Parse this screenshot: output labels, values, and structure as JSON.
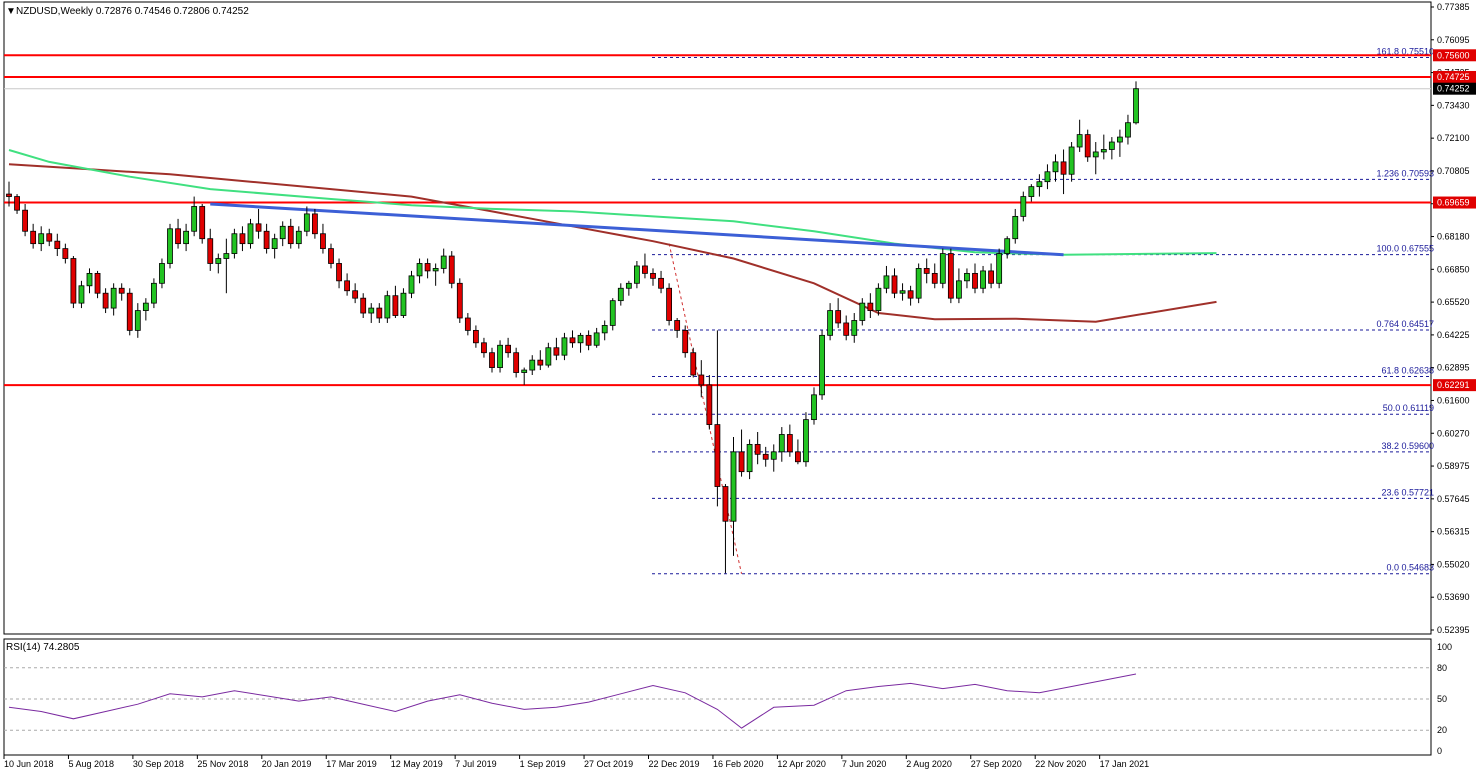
{
  "window": {
    "symbol_info": "NZDUSD,Weekly  0.72876 0.74546 0.72806 0.74252"
  },
  "colors": {
    "bull": "#22c322",
    "bear": "#e00000",
    "sma_fast": "#40e080",
    "sma_slow": "#a0302a",
    "trendline": "#3c5fd6",
    "resistance": "#ff0000",
    "fib": "#1a1a9a",
    "rsi": "#7a2aa0",
    "current_tag": "#000000",
    "level_tag": "#e00000"
  },
  "chart_data": [
    {
      "type": "candlestick",
      "title": "NZDUSD,Weekly",
      "ohlc_readout": [
        "0.72876",
        "0.74546",
        "0.72806",
        "0.74252"
      ],
      "price_axis_labels": [
        "0.77385",
        "0.76095",
        "0.74725",
        "0.73430",
        "0.72100",
        "0.70805",
        "0.69659",
        "0.68180",
        "0.66850",
        "0.65520",
        "0.64225",
        "0.62895",
        "0.61600",
        "0.60270",
        "0.58975",
        "0.57645",
        "0.56315",
        "0.55020",
        "0.53690",
        "0.52395"
      ],
      "time_axis_labels": [
        "10 Jun 2018",
        "5 Aug 2018",
        "30 Sep 2018",
        "25 Nov 2018",
        "20 Jan 2019",
        "17 Mar 2019",
        "12 May 2019",
        "7 Jul 2019",
        "1 Sep 2019",
        "27 Oct 2019",
        "22 Dec 2019",
        "16 Feb 2020",
        "12 Apr 2020",
        "7 Jun 2020",
        "2 Aug 2020",
        "27 Sep 2020",
        "22 Nov 2020",
        "17 Jan 2021"
      ],
      "ylim": [
        0.5225,
        0.7775
      ],
      "current_price": 0.74252,
      "current_price_label": "0.74252",
      "horizontal_levels": [
        {
          "price": 0.756,
          "label": "0.75600"
        },
        {
          "price": 0.74725,
          "label": "0.74725"
        },
        {
          "price": 0.69659,
          "label": "0.69659"
        },
        {
          "price": 0.62291,
          "label": "0.62291"
        }
      ],
      "fibonacci": [
        {
          "text": "161.8  0.75510",
          "price": 0.7551
        },
        {
          "text": "1.236  0.70593",
          "price": 0.70593
        },
        {
          "text": "100.0  0.67555",
          "price": 0.67555
        },
        {
          "text": "0.764  0.64517",
          "price": 0.64517
        },
        {
          "text": "61.8  0.62638",
          "price": 0.62638
        },
        {
          "text": "50.0  0.61119",
          "price": 0.61119
        },
        {
          "text": "38.2  0.59600",
          "price": 0.596
        },
        {
          "text": "23.6  0.57721",
          "price": 0.57721
        },
        {
          "text": "0.0  0.54683",
          "price": 0.54683
        }
      ],
      "fib_swing": {
        "from_week": 82,
        "from_price": 0.68,
        "to_week": 91,
        "to_price": 0.5468
      },
      "trendline": {
        "from_week": 25,
        "from_price": 0.696,
        "to_week": 131,
        "to_price": 0.6755
      },
      "sma_fast_points": [
        [
          0,
          0.7178
        ],
        [
          5,
          0.713
        ],
        [
          15,
          0.707
        ],
        [
          25,
          0.702
        ],
        [
          40,
          0.698
        ],
        [
          50,
          0.6955
        ],
        [
          60,
          0.694
        ],
        [
          70,
          0.693
        ],
        [
          80,
          0.691
        ],
        [
          90,
          0.689
        ],
        [
          100,
          0.685
        ],
        [
          110,
          0.68
        ],
        [
          120,
          0.6765
        ],
        [
          131,
          0.6755
        ],
        [
          150,
          0.6762
        ]
      ],
      "sma_slow_points": [
        [
          0,
          0.712
        ],
        [
          10,
          0.71
        ],
        [
          20,
          0.708
        ],
        [
          30,
          0.705
        ],
        [
          40,
          0.702
        ],
        [
          50,
          0.699
        ],
        [
          60,
          0.693
        ],
        [
          70,
          0.687
        ],
        [
          80,
          0.681
        ],
        [
          90,
          0.674
        ],
        [
          100,
          0.664
        ],
        [
          108,
          0.652
        ],
        [
          115,
          0.6495
        ],
        [
          125,
          0.6497
        ],
        [
          135,
          0.6485
        ],
        [
          150,
          0.6565
        ]
      ],
      "rsi": {
        "label": "RSI(14) 74.2805",
        "value": 74.2805,
        "ylim": [
          0,
          100
        ],
        "levels": [
          80,
          50,
          20
        ],
        "axis_labels": [
          "100",
          "80",
          "50",
          "20",
          "0"
        ],
        "points": [
          [
            0,
            42
          ],
          [
            4,
            38
          ],
          [
            8,
            31
          ],
          [
            12,
            38
          ],
          [
            16,
            45
          ],
          [
            20,
            55
          ],
          [
            24,
            52
          ],
          [
            28,
            58
          ],
          [
            32,
            53
          ],
          [
            36,
            48
          ],
          [
            40,
            52
          ],
          [
            44,
            45
          ],
          [
            48,
            38
          ],
          [
            52,
            48
          ],
          [
            56,
            54
          ],
          [
            60,
            46
          ],
          [
            64,
            40
          ],
          [
            68,
            42
          ],
          [
            72,
            47
          ],
          [
            76,
            55
          ],
          [
            80,
            63
          ],
          [
            84,
            56
          ],
          [
            88,
            40
          ],
          [
            91,
            22
          ],
          [
            95,
            42
          ],
          [
            100,
            44
          ],
          [
            104,
            58
          ],
          [
            108,
            62
          ],
          [
            112,
            65
          ],
          [
            116,
            60
          ],
          [
            120,
            64
          ],
          [
            124,
            58
          ],
          [
            128,
            56
          ],
          [
            132,
            62
          ],
          [
            136,
            68
          ],
          [
            140,
            74
          ]
        ]
      },
      "candles": [
        [
          0.7,
          0.705,
          0.695,
          0.699
        ],
        [
          0.699,
          0.7,
          0.692,
          0.6935
        ],
        [
          0.6935,
          0.696,
          0.683,
          0.685
        ],
        [
          0.685,
          0.688,
          0.678,
          0.68
        ],
        [
          0.68,
          0.687,
          0.677,
          0.684
        ],
        [
          0.684,
          0.686,
          0.679,
          0.681
        ],
        [
          0.681,
          0.684,
          0.675,
          0.678
        ],
        [
          0.678,
          0.68,
          0.672,
          0.674
        ],
        [
          0.674,
          0.675,
          0.654,
          0.656
        ],
        [
          0.656,
          0.665,
          0.654,
          0.663
        ],
        [
          0.663,
          0.67,
          0.66,
          0.668
        ],
        [
          0.668,
          0.669,
          0.658,
          0.66
        ],
        [
          0.66,
          0.662,
          0.652,
          0.654
        ],
        [
          0.654,
          0.664,
          0.651,
          0.662
        ],
        [
          0.662,
          0.664,
          0.657,
          0.66
        ],
        [
          0.66,
          0.662,
          0.643,
          0.645
        ],
        [
          0.645,
          0.656,
          0.642,
          0.653
        ],
        [
          0.653,
          0.658,
          0.649,
          0.656
        ],
        [
          0.656,
          0.666,
          0.654,
          0.664
        ],
        [
          0.664,
          0.674,
          0.662,
          0.672
        ],
        [
          0.672,
          0.688,
          0.67,
          0.686
        ],
        [
          0.686,
          0.69,
          0.678,
          0.68
        ],
        [
          0.68,
          0.688,
          0.677,
          0.685
        ],
        [
          0.685,
          0.699,
          0.683,
          0.695
        ],
        [
          0.695,
          0.696,
          0.68,
          0.682
        ],
        [
          0.682,
          0.686,
          0.669,
          0.672
        ],
        [
          0.672,
          0.676,
          0.668,
          0.674
        ],
        [
          0.674,
          0.682,
          0.66,
          0.676
        ],
        [
          0.676,
          0.686,
          0.674,
          0.684
        ],
        [
          0.684,
          0.687,
          0.677,
          0.68
        ],
        [
          0.68,
          0.69,
          0.678,
          0.688
        ],
        [
          0.688,
          0.694,
          0.682,
          0.685
        ],
        [
          0.685,
          0.688,
          0.676,
          0.678
        ],
        [
          0.678,
          0.684,
          0.674,
          0.682
        ],
        [
          0.682,
          0.689,
          0.679,
          0.687
        ],
        [
          0.687,
          0.69,
          0.678,
          0.68
        ],
        [
          0.68,
          0.687,
          0.678,
          0.685
        ],
        [
          0.685,
          0.695,
          0.683,
          0.692
        ],
        [
          0.692,
          0.694,
          0.682,
          0.684
        ],
        [
          0.684,
          0.688,
          0.676,
          0.678
        ],
        [
          0.678,
          0.68,
          0.67,
          0.672
        ],
        [
          0.672,
          0.674,
          0.662,
          0.665
        ],
        [
          0.665,
          0.668,
          0.659,
          0.661
        ],
        [
          0.661,
          0.664,
          0.656,
          0.658
        ],
        [
          0.658,
          0.66,
          0.65,
          0.652
        ],
        [
          0.652,
          0.656,
          0.648,
          0.654
        ],
        [
          0.654,
          0.656,
          0.648,
          0.65
        ],
        [
          0.65,
          0.661,
          0.648,
          0.659
        ],
        [
          0.659,
          0.663,
          0.65,
          0.651
        ],
        [
          0.651,
          0.662,
          0.65,
          0.66
        ],
        [
          0.66,
          0.669,
          0.658,
          0.667
        ],
        [
          0.667,
          0.674,
          0.664,
          0.672
        ],
        [
          0.672,
          0.674,
          0.666,
          0.669
        ],
        [
          0.669,
          0.672,
          0.663,
          0.67
        ],
        [
          0.67,
          0.678,
          0.668,
          0.675
        ],
        [
          0.675,
          0.677,
          0.662,
          0.664
        ],
        [
          0.664,
          0.666,
          0.648,
          0.65
        ],
        [
          0.65,
          0.652,
          0.643,
          0.645
        ],
        [
          0.645,
          0.647,
          0.638,
          0.64
        ],
        [
          0.64,
          0.642,
          0.634,
          0.636
        ],
        [
          0.636,
          0.638,
          0.628,
          0.63
        ],
        [
          0.63,
          0.641,
          0.628,
          0.639
        ],
        [
          0.639,
          0.642,
          0.634,
          0.636
        ],
        [
          0.636,
          0.638,
          0.626,
          0.628
        ],
        [
          0.628,
          0.63,
          0.623,
          0.629
        ],
        [
          0.629,
          0.635,
          0.627,
          0.633
        ],
        [
          0.633,
          0.637,
          0.629,
          0.631
        ],
        [
          0.631,
          0.64,
          0.63,
          0.638
        ],
        [
          0.638,
          0.642,
          0.633,
          0.635
        ],
        [
          0.635,
          0.644,
          0.633,
          0.642
        ],
        [
          0.642,
          0.645,
          0.638,
          0.64
        ],
        [
          0.64,
          0.644,
          0.636,
          0.643
        ],
        [
          0.643,
          0.645,
          0.637,
          0.639
        ],
        [
          0.639,
          0.646,
          0.638,
          0.644
        ],
        [
          0.644,
          0.649,
          0.641,
          0.647
        ],
        [
          0.647,
          0.658,
          0.645,
          0.657
        ],
        [
          0.657,
          0.664,
          0.655,
          0.662
        ],
        [
          0.662,
          0.665,
          0.659,
          0.664
        ],
        [
          0.664,
          0.673,
          0.662,
          0.671
        ],
        [
          0.671,
          0.676,
          0.666,
          0.668
        ],
        [
          0.668,
          0.67,
          0.663,
          0.666
        ],
        [
          0.666,
          0.669,
          0.66,
          0.662
        ],
        [
          0.662,
          0.664,
          0.647,
          0.649
        ],
        [
          0.649,
          0.65,
          0.642,
          0.645
        ],
        [
          0.645,
          0.647,
          0.634,
          0.636
        ],
        [
          0.636,
          0.638,
          0.626,
          0.627
        ],
        [
          0.627,
          0.633,
          0.618,
          0.623
        ],
        [
          0.623,
          0.627,
          0.605,
          0.607
        ],
        [
          0.607,
          0.645,
          0.574,
          0.582
        ],
        [
          0.582,
          0.583,
          0.547,
          0.568
        ],
        [
          0.568,
          0.602,
          0.554,
          0.596
        ],
        [
          0.596,
          0.605,
          0.586,
          0.588
        ],
        [
          0.588,
          0.601,
          0.585,
          0.599
        ],
        [
          0.599,
          0.604,
          0.591,
          0.595
        ],
        [
          0.595,
          0.598,
          0.59,
          0.593
        ],
        [
          0.593,
          0.599,
          0.588,
          0.596
        ],
        [
          0.596,
          0.606,
          0.592,
          0.603
        ],
        [
          0.603,
          0.607,
          0.594,
          0.596
        ],
        [
          0.596,
          0.601,
          0.591,
          0.592
        ],
        [
          0.592,
          0.612,
          0.59,
          0.609
        ],
        [
          0.609,
          0.622,
          0.607,
          0.619
        ],
        [
          0.619,
          0.645,
          0.617,
          0.643
        ],
        [
          0.643,
          0.656,
          0.641,
          0.653
        ],
        [
          0.653,
          0.658,
          0.646,
          0.648
        ],
        [
          0.648,
          0.651,
          0.641,
          0.643
        ],
        [
          0.643,
          0.652,
          0.64,
          0.649
        ],
        [
          0.649,
          0.658,
          0.647,
          0.656
        ],
        [
          0.656,
          0.66,
          0.65,
          0.653
        ],
        [
          0.653,
          0.664,
          0.651,
          0.662
        ],
        [
          0.662,
          0.671,
          0.66,
          0.667
        ],
        [
          0.667,
          0.67,
          0.658,
          0.66
        ],
        [
          0.66,
          0.664,
          0.657,
          0.661
        ],
        [
          0.661,
          0.663,
          0.655,
          0.658
        ],
        [
          0.658,
          0.672,
          0.656,
          0.67
        ],
        [
          0.67,
          0.674,
          0.664,
          0.668
        ],
        [
          0.668,
          0.672,
          0.662,
          0.664
        ],
        [
          0.664,
          0.678,
          0.662,
          0.676
        ],
        [
          0.676,
          0.678,
          0.656,
          0.658
        ],
        [
          0.658,
          0.67,
          0.656,
          0.665
        ],
        [
          0.665,
          0.67,
          0.662,
          0.668
        ],
        [
          0.668,
          0.672,
          0.66,
          0.662
        ],
        [
          0.662,
          0.671,
          0.66,
          0.669
        ],
        [
          0.669,
          0.672,
          0.662,
          0.664
        ],
        [
          0.664,
          0.678,
          0.662,
          0.676
        ],
        [
          0.676,
          0.683,
          0.674,
          0.682
        ],
        [
          0.682,
          0.694,
          0.68,
          0.691
        ],
        [
          0.691,
          0.701,
          0.689,
          0.699
        ],
        [
          0.699,
          0.704,
          0.697,
          0.703
        ],
        [
          0.703,
          0.708,
          0.699,
          0.705
        ],
        [
          0.705,
          0.712,
          0.702,
          0.709
        ],
        [
          0.709,
          0.716,
          0.705,
          0.713
        ],
        [
          0.713,
          0.718,
          0.7,
          0.708
        ],
        [
          0.708,
          0.721,
          0.705,
          0.719
        ],
        [
          0.719,
          0.73,
          0.717,
          0.724
        ],
        [
          0.724,
          0.726,
          0.713,
          0.715
        ],
        [
          0.715,
          0.721,
          0.708,
          0.717
        ],
        [
          0.717,
          0.724,
          0.714,
          0.718
        ],
        [
          0.718,
          0.723,
          0.714,
          0.721
        ],
        [
          0.721,
          0.726,
          0.715,
          0.723
        ],
        [
          0.723,
          0.732,
          0.72,
          0.7288
        ],
        [
          0.72876,
          0.74546,
          0.72806,
          0.74252
        ]
      ]
    }
  ]
}
